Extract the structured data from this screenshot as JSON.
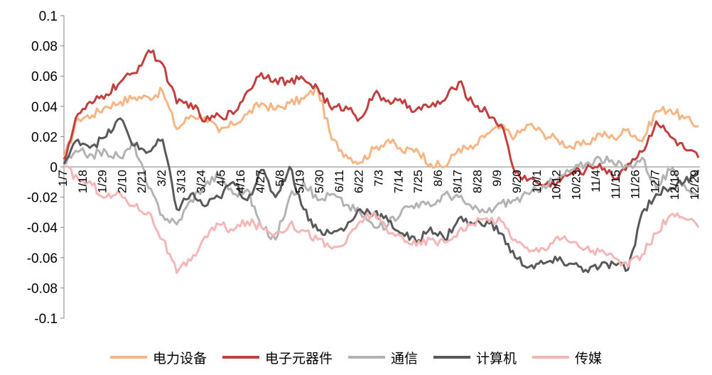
{
  "chart_data": {
    "type": "line",
    "ylim": [
      -0.1,
      0.1
    ],
    "yticks": [
      "0.1",
      "0.08",
      "0.06",
      "0.04",
      "0.02",
      "0",
      "-0.02",
      "-0.04",
      "-0.06",
      "-0.08",
      "-0.1"
    ],
    "x_tick_labels": [
      "1/7",
      "1/18",
      "1/29",
      "2/10",
      "2/21",
      "3/2",
      "3/13",
      "3/24",
      "4/5",
      "4/16",
      "4/27",
      "5/8",
      "5/19",
      "5/30",
      "6/11",
      "6/22",
      "7/3",
      "7/14",
      "7/25",
      "8/6",
      "8/17",
      "8/28",
      "9/9",
      "9/20",
      "10/1",
      "10/12",
      "10/23",
      "11/4",
      "11/15",
      "11/26",
      "12/7",
      "12/18",
      "12/29"
    ],
    "legend_position": "bottom",
    "series": [
      {
        "name": "电力设备",
        "color": "#F5B584",
        "values": [
          0.005,
          0.032,
          0.034,
          0.04,
          0.043,
          0.046,
          0.046,
          0.05,
          0.025,
          0.034,
          0.033,
          0.023,
          0.028,
          0.035,
          0.042,
          0.038,
          0.042,
          0.045,
          0.052,
          0.018,
          0.008,
          0.003,
          0.012,
          0.018,
          0.01,
          0.012,
          0.002,
          0.0,
          0.012,
          0.012,
          0.022,
          0.026,
          0.02,
          0.028,
          0.022,
          0.018,
          0.013,
          0.015,
          0.022,
          0.019,
          0.025,
          0.017,
          0.037,
          0.038,
          0.032,
          0.027
        ]
      },
      {
        "name": "电子元器件",
        "color": "#C0403F",
        "values": [
          0.005,
          0.035,
          0.042,
          0.048,
          0.056,
          0.062,
          0.077,
          0.068,
          0.042,
          0.042,
          0.03,
          0.034,
          0.035,
          0.05,
          0.062,
          0.058,
          0.056,
          0.058,
          0.052,
          0.038,
          0.04,
          0.032,
          0.048,
          0.044,
          0.042,
          0.038,
          0.04,
          0.044,
          0.056,
          0.042,
          0.036,
          0.028,
          -0.004,
          -0.008,
          -0.012,
          -0.01,
          -0.004,
          -0.002,
          0.002,
          -0.008,
          0.002,
          0.01,
          0.03,
          0.02,
          0.012,
          0.006
        ]
      },
      {
        "name": "通信",
        "color": "#B3B3B3",
        "values": [
          0.002,
          0.01,
          0.008,
          0.01,
          0.006,
          0.015,
          -0.014,
          -0.032,
          -0.038,
          -0.022,
          -0.012,
          -0.005,
          -0.018,
          -0.015,
          -0.04,
          -0.048,
          -0.02,
          -0.01,
          -0.022,
          -0.018,
          -0.025,
          -0.03,
          -0.04,
          -0.038,
          -0.028,
          -0.024,
          -0.026,
          -0.018,
          -0.02,
          -0.028,
          -0.03,
          -0.024,
          -0.022,
          -0.018,
          -0.012,
          -0.008,
          -0.002,
          0.002,
          0.006,
          0.002,
          0.0,
          0.006,
          -0.014,
          -0.002,
          -0.012,
          -0.02
        ]
      },
      {
        "name": "计算机",
        "color": "#595959",
        "values": [
          0.002,
          0.018,
          0.014,
          0.02,
          0.032,
          0.014,
          0.01,
          0.018,
          -0.028,
          -0.018,
          -0.026,
          -0.02,
          -0.01,
          -0.022,
          -0.002,
          -0.02,
          0.0,
          -0.028,
          -0.042,
          -0.044,
          -0.04,
          -0.028,
          -0.03,
          -0.036,
          -0.044,
          -0.05,
          -0.04,
          -0.048,
          -0.034,
          -0.038,
          -0.036,
          -0.044,
          -0.06,
          -0.066,
          -0.064,
          -0.062,
          -0.064,
          -0.068,
          -0.066,
          -0.064,
          -0.068,
          -0.03,
          -0.018,
          -0.014,
          -0.01,
          -0.002
        ]
      },
      {
        "name": "传媒",
        "color": "#F4B6B6",
        "values": [
          0.0,
          -0.008,
          -0.012,
          -0.02,
          -0.018,
          -0.026,
          -0.03,
          -0.048,
          -0.07,
          -0.062,
          -0.046,
          -0.038,
          -0.042,
          -0.036,
          -0.04,
          -0.044,
          -0.038,
          -0.042,
          -0.048,
          -0.054,
          -0.05,
          -0.036,
          -0.03,
          -0.044,
          -0.046,
          -0.052,
          -0.048,
          -0.05,
          -0.042,
          -0.038,
          -0.034,
          -0.036,
          -0.048,
          -0.056,
          -0.054,
          -0.046,
          -0.05,
          -0.054,
          -0.056,
          -0.06,
          -0.066,
          -0.058,
          -0.044,
          -0.032,
          -0.034,
          -0.04
        ]
      }
    ]
  }
}
